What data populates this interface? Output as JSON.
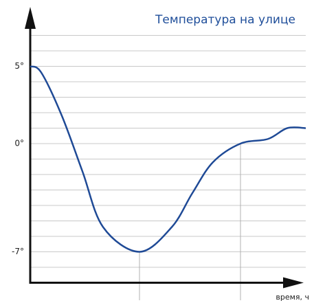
{
  "chart_data": {
    "type": "line",
    "title": "Температура на улице",
    "x_label": "время, ч",
    "x": [
      0,
      16,
      46,
      76,
      106,
      159,
      206,
      236,
      266,
      306,
      346,
      374,
      401
    ],
    "series": [
      {
        "color": "#1f4a96",
        "values": [
          5,
          4.6,
          1.8,
          -1.8,
          -5.4,
          -7,
          -5.4,
          -3.2,
          -1.2,
          0,
          0.3,
          1,
          1
        ]
      }
    ],
    "xlim": [
      0,
      401
    ],
    "ylim": [
      -9,
      9
    ],
    "yticks": [
      {
        "value": 5,
        "label": "5°"
      },
      {
        "value": 0,
        "label": "0°"
      },
      {
        "value": -7,
        "label": "-7°"
      }
    ],
    "ygrid": [
      -8,
      -7,
      -6,
      -5,
      -4,
      -3,
      -2,
      -1,
      0,
      1,
      2,
      3,
      4,
      5,
      6,
      7
    ],
    "guides_x": [
      159,
      306
    ],
    "grid": true
  }
}
